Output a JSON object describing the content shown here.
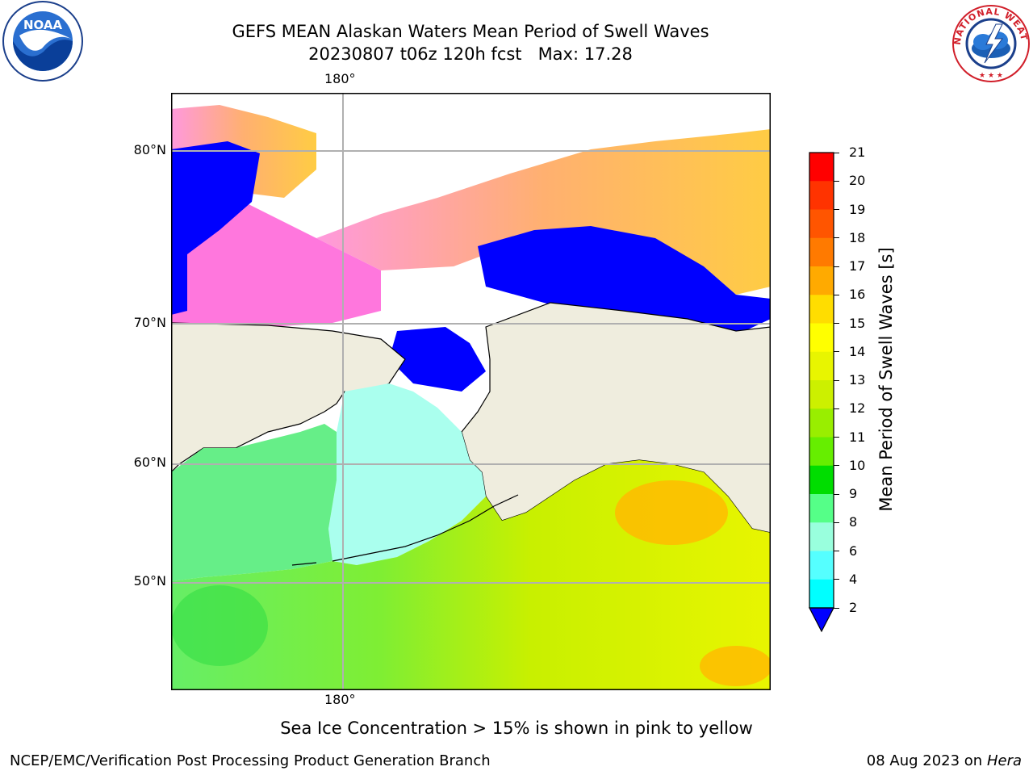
{
  "title_line1": "GEFS MEAN Alaskan Waters Mean Period of Swell Waves",
  "title_line2": "20230807 t06z 120h fcst   Max: 17.28",
  "logos": {
    "left": "NOAA",
    "right_arc": "NATIONAL WEATHER SERVICE"
  },
  "map": {
    "lon_top_label": "180°",
    "lon_bottom_label": "180°",
    "lat_labels": [
      "80°N",
      "70°N",
      "60°N",
      "50°N"
    ],
    "colors": {
      "land": "#efedde",
      "coast": "#000000",
      "grid": "#b0b0b0"
    }
  },
  "colorbar": {
    "label": "Mean Period of Swell Waves [s]",
    "ticks": [
      "21",
      "20",
      "19",
      "18",
      "17",
      "16",
      "15",
      "14",
      "13",
      "12",
      "11",
      "10",
      "9",
      "8",
      "6",
      "4",
      "2"
    ],
    "colors": [
      "#ff0000",
      "#ff3300",
      "#ff5500",
      "#ff7a00",
      "#ffaa00",
      "#ffdd00",
      "#ffff00",
      "#e8f500",
      "#ccf000",
      "#99ee00",
      "#66ee00",
      "#00dd00",
      "#55ff88",
      "#99ffdd",
      "#55ffff",
      "#00ffff",
      "#0077ff",
      "#0000ff"
    ]
  },
  "note": "Sea Ice Concentration > 15% is shown in pink to yellow",
  "footer_left": "NCEP/EMC/Verification Post Processing Product Generation Branch",
  "footer_date": "08 Aug 2023 on",
  "footer_machine": "Hera"
}
